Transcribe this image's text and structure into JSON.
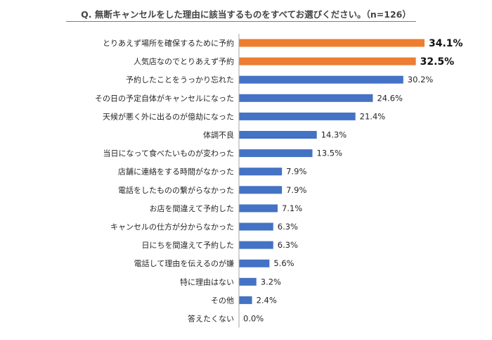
{
  "title": "Q. 無断キャンセルをした理由に該当するものをすべてお選びください。（n=126）",
  "colors": {
    "highlight": "#ed7d31",
    "normal": "#4472c4",
    "axis": "#a6a6a6"
  },
  "chart_data": {
    "type": "bar",
    "orientation": "horizontal",
    "title": "Q. 無断キャンセルをした理由に該当するものをすべてお選びください。（n=126）",
    "categories": [
      "とりあえず場所を確保するために予約",
      "人気店なのでとりあえず予約",
      "予約したことをうっかり忘れた",
      "その日の予定自体がキャンセルになった",
      "天候が悪く外に出るのが億劫になった",
      "体調不良",
      "当日になって食べたいものが変わった",
      "店舗に連絡をする時間がなかった",
      "電話をしたものの繋がらなかった",
      "お店を間違えて予約した",
      "キャンセルの仕方が分からなかった",
      "日にちを間違えて予約した",
      "電話して理由を伝えるのが嫌",
      "特に理由はない",
      "その他",
      "答えたくない"
    ],
    "values": [
      34.1,
      32.5,
      30.2,
      24.6,
      21.4,
      14.3,
      13.5,
      7.9,
      7.9,
      7.1,
      6.3,
      6.3,
      5.6,
      3.2,
      2.4,
      0.0
    ],
    "value_labels": [
      "34.1%",
      "32.5%",
      "30.2%",
      "24.6%",
      "21.4%",
      "14.3%",
      "13.5%",
      "7.9%",
      "7.9%",
      "7.1%",
      "6.3%",
      "6.3%",
      "5.6%",
      "3.2%",
      "2.4%",
      "0.0%"
    ],
    "highlighted": [
      true,
      true,
      false,
      false,
      false,
      false,
      false,
      false,
      false,
      false,
      false,
      false,
      false,
      false,
      false,
      false
    ],
    "xlim": [
      0,
      34.1
    ],
    "grid": false,
    "legend": "none"
  }
}
